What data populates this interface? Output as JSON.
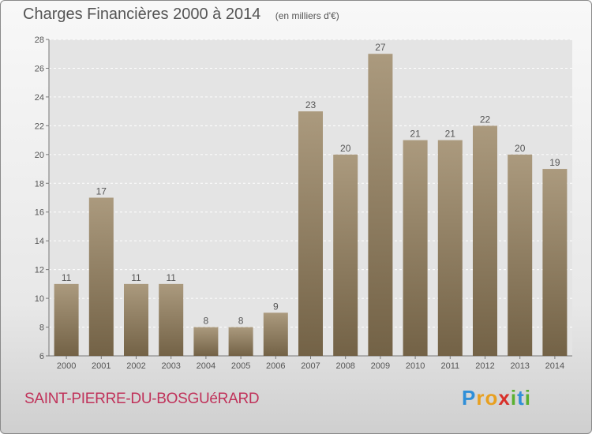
{
  "header": {
    "title": "Charges Financières 2000 à 2014",
    "subtitle": "(en milliers d'€)"
  },
  "footer": {
    "commune": "SAINT-PIERRE-DU-BOSGUéRARD",
    "logo_letters": [
      "P",
      "r",
      "o",
      "x",
      "i",
      "t",
      "i"
    ],
    "logo_colors": [
      "#2f8fd8",
      "#e8a020",
      "#e8a020",
      "#d8302a",
      "#5ab030",
      "#2f8fd8",
      "#5ab030"
    ]
  },
  "colors": {
    "bar_top": "#ab9a7e",
    "bar_bottom": "#736246",
    "plot_bg": "#e4e4e4",
    "grid": "#ffffff",
    "text": "#555555"
  },
  "chart_data": {
    "type": "bar",
    "title": "Charges Financières 2000 à 2014",
    "subtitle": "(en milliers d'€)",
    "xlabel": "",
    "ylabel": "",
    "categories": [
      "2000",
      "2001",
      "2002",
      "2003",
      "2004",
      "2005",
      "2006",
      "2007",
      "2008",
      "2009",
      "2010",
      "2011",
      "2012",
      "2013",
      "2014"
    ],
    "values": [
      11,
      17,
      11,
      11,
      8,
      8,
      9,
      23,
      20,
      27,
      21,
      21,
      22,
      20,
      19
    ],
    "ylim": [
      6,
      28
    ],
    "yticks": [
      6,
      8,
      10,
      12,
      14,
      16,
      18,
      20,
      22,
      24,
      26,
      28
    ],
    "grid": true,
    "data_labels": true
  }
}
